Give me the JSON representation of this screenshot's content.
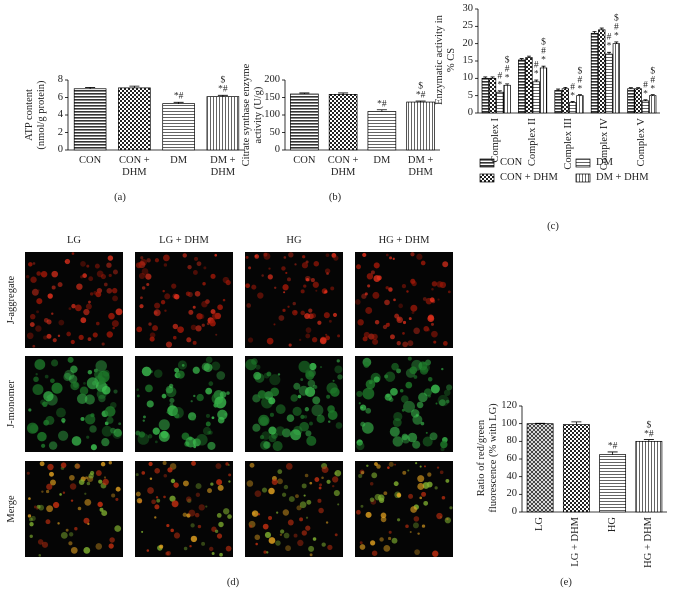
{
  "chart_data": [
    {
      "type": "bar",
      "caption": "(a)",
      "y_label": "ATP content (nmol/g protein)",
      "categories": [
        "CON",
        "CON + DHM",
        "DM",
        "DM + DHM"
      ],
      "values": [
        7.0,
        7.1,
        5.3,
        6.1
      ],
      "errors": [
        0.15,
        0.2,
        0.15,
        0.15
      ],
      "annotations": [
        [],
        [],
        [
          "*#"
        ],
        [
          "$",
          "*#"
        ]
      ],
      "ylim": [
        0,
        8
      ],
      "yticks": [
        0,
        2,
        4,
        6,
        8
      ]
    },
    {
      "type": "bar",
      "caption": "(b)",
      "y_label": "Citrate synthase enzyme activity (U/g)",
      "categories": [
        "CON",
        "CON + DHM",
        "DM",
        "DM + DHM"
      ],
      "values": [
        160,
        159,
        110,
        137
      ],
      "errors": [
        3,
        4,
        5,
        3
      ],
      "annotations": [
        [],
        [],
        [
          "*#"
        ],
        [
          "$",
          "*#"
        ]
      ],
      "ylim": [
        0,
        200
      ],
      "yticks": [
        0,
        50,
        100,
        150,
        200
      ]
    },
    {
      "type": "grouped_bar",
      "caption": "(c)",
      "y_label": "Enzymatic activity in % CS",
      "categories": [
        "Complex I",
        "Complex II",
        "Complex III",
        "Complex IV",
        "Complex V"
      ],
      "series": [
        {
          "name": "CON",
          "values": [
            10,
            15.3,
            6.5,
            23,
            7
          ],
          "errors": [
            0.4,
            0.4,
            0.4,
            0.5,
            0.3
          ]
        },
        {
          "name": "CON + DHM",
          "values": [
            10,
            16,
            7,
            24,
            7
          ],
          "errors": [
            0.4,
            0.4,
            0.4,
            0.5,
            0.3
          ]
        },
        {
          "name": "DM",
          "values": [
            6,
            9,
            3,
            17,
            3.5
          ],
          "errors": [
            0.4,
            0.5,
            0.3,
            0.5,
            0.3
          ],
          "annotations": [
            [
              "#",
              "*"
            ],
            [
              "#",
              "*"
            ],
            [
              "#",
              "*"
            ],
            [
              "#",
              "*"
            ],
            [
              "#",
              "*"
            ]
          ]
        },
        {
          "name": "DM + DHM",
          "values": [
            8,
            13,
            5,
            20,
            5
          ],
          "errors": [
            0.4,
            0.5,
            0.3,
            0.5,
            0.3
          ],
          "annotations": [
            [
              "$",
              "#",
              "*"
            ],
            [
              "$",
              "#",
              "*"
            ],
            [
              "$",
              "#",
              "*"
            ],
            [
              "$",
              "#",
              "*"
            ],
            [
              "$",
              "#",
              "*"
            ]
          ]
        }
      ],
      "ylim": [
        0,
        30
      ],
      "yticks": [
        0,
        5,
        10,
        15,
        20,
        25,
        30
      ]
    },
    {
      "type": "bar",
      "caption": "(e)",
      "y_label": "Ratio of red/green fluorescence (% with LG)",
      "categories": [
        "LG",
        "LG + DHM",
        "HG",
        "HG + DHM"
      ],
      "values": [
        100,
        99,
        65,
        80
      ],
      "errors": [
        0.5,
        3,
        3,
        2
      ],
      "annotations": [
        [],
        [],
        [
          "*#"
        ],
        [
          "$",
          "*#"
        ]
      ],
      "ylim": [
        0,
        120
      ],
      "yticks": [
        0,
        20,
        40,
        60,
        80,
        100,
        120
      ]
    }
  ],
  "image_panel": {
    "caption": "(d)",
    "columns": [
      "LG",
      "LG + DHM",
      "HG",
      "HG + DHM"
    ],
    "rows": [
      "J-aggregate",
      "J-monomer",
      "Merge"
    ]
  }
}
